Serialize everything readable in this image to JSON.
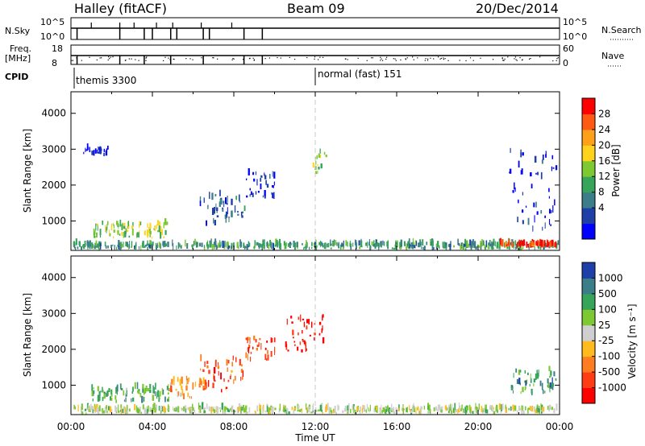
{
  "header": {
    "station": "Halley (fitACF)",
    "beam": "Beam 09",
    "date": "20/Dec/2014"
  },
  "top_panels": {
    "nsky_label": "N.Sky",
    "nsky_ticks": [
      "10^5",
      "10^0"
    ],
    "nsearch_label": "N.Search",
    "nsearch_ticks": [
      "10^5",
      "10^0"
    ],
    "freq_label": "Freq.",
    "freq_unit": "[MHz]",
    "freq_ticks": [
      "18",
      "8"
    ],
    "nave_label": "Nave",
    "nave_ticks": [
      "60",
      "0"
    ],
    "cpid_label": "CPID",
    "cpid_segments": [
      {
        "name": "themis 3300",
        "start_hour": 0
      },
      {
        "name": "normal (fast) 151",
        "start_hour": 12
      }
    ]
  },
  "chart_data": [
    {
      "type": "heatmap",
      "name": "power",
      "ylabel": "Slant Range [km]",
      "ylim": [
        180,
        4600
      ],
      "yticks": [
        1000,
        2000,
        3000,
        4000
      ],
      "xlim": [
        0,
        24
      ],
      "colorbar": {
        "label": "Power [dB]",
        "ticks": [
          "28",
          "24",
          "20",
          "16",
          "12",
          "8",
          "4"
        ],
        "colors": [
          "#0000ff",
          "#1f3fa8",
          "#3c7d8a",
          "#36a55a",
          "#7ec832",
          "#ffd21c",
          "#ff9f1a",
          "#ff5a14",
          "#ff0000"
        ]
      },
      "regions": [
        {
          "t0": 0.1,
          "t1": 23.9,
          "r0": 190,
          "r1": 330,
          "level": 0.35
        },
        {
          "t0": 1.0,
          "t1": 4.8,
          "r0": 500,
          "r1": 900,
          "level": 0.5
        },
        {
          "t0": 6.3,
          "t1": 8.5,
          "r0": 800,
          "r1": 1700,
          "level": 0.2
        },
        {
          "t0": 8.5,
          "t1": 10.0,
          "r0": 1600,
          "r1": 2300,
          "level": 0.1
        },
        {
          "t0": 0.6,
          "t1": 1.8,
          "r0": 2800,
          "r1": 3000,
          "level": 0.05
        },
        {
          "t0": 11.8,
          "t1": 12.5,
          "r0": 2300,
          "r1": 3000,
          "level": 0.5
        },
        {
          "t0": 21.5,
          "t1": 23.8,
          "r0": 700,
          "r1": 2900,
          "level": 0.1
        },
        {
          "t0": 21.0,
          "t1": 23.8,
          "r0": 250,
          "r1": 330,
          "level": 0.9
        }
      ]
    },
    {
      "type": "heatmap",
      "name": "velocity",
      "ylabel": "Slant Range [km]",
      "ylim": [
        180,
        4600
      ],
      "yticks": [
        1000,
        2000,
        3000,
        4000
      ],
      "xlim": [
        0,
        24
      ],
      "xticks": [
        "00:00",
        "04:00",
        "08:00",
        "12:00",
        "16:00",
        "20:00",
        "00:00"
      ],
      "xlabel": "Time UT",
      "colorbar": {
        "label": "Velocity [m s⁻¹]",
        "ticks": [
          "1000",
          "500",
          "100",
          "25",
          "-25",
          "-100",
          "-500",
          "-1000"
        ],
        "colors": [
          "#ff0000",
          "#ff3c14",
          "#ff7d1e",
          "#ffbb1e",
          "#cfcfcf",
          "#7ec832",
          "#36a55a",
          "#3c7d8a",
          "#1f3fa8"
        ]
      },
      "regions": [
        {
          "t0": 0.1,
          "t1": 23.9,
          "r0": 190,
          "r1": 330,
          "level": 0.55
        },
        {
          "t0": 1.0,
          "t1": 4.8,
          "r0": 500,
          "r1": 900,
          "level": 0.7
        },
        {
          "t0": 4.8,
          "t1": 6.5,
          "r0": 600,
          "r1": 1100,
          "level": 0.35
        },
        {
          "t0": 6.3,
          "t1": 8.5,
          "r0": 800,
          "r1": 1700,
          "level": 0.2
        },
        {
          "t0": 8.5,
          "t1": 10.0,
          "r0": 1600,
          "r1": 2300,
          "level": 0.2
        },
        {
          "t0": 10.5,
          "t1": 12.4,
          "r0": 1900,
          "r1": 2900,
          "level": 0.05
        },
        {
          "t0": 21.5,
          "t1": 23.8,
          "r0": 700,
          "r1": 1400,
          "level": 0.75
        }
      ]
    }
  ]
}
